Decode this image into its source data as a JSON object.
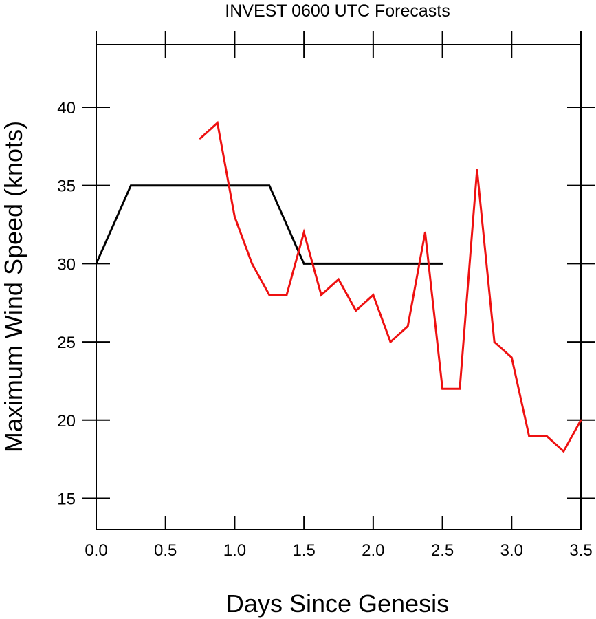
{
  "chart_data": {
    "type": "line",
    "title": "INVEST 0600 UTC Forecasts",
    "xlabel": "Days Since Genesis",
    "ylabel": "Maximum Wind Speed (knots)",
    "xlim": [
      0,
      3.5
    ],
    "ylim": [
      13,
      44
    ],
    "xticks": [
      {
        "value": 0,
        "label": "0.0"
      },
      {
        "value": 0.5,
        "label": "0.5"
      },
      {
        "value": 1,
        "label": "1.0"
      },
      {
        "value": 1.5,
        "label": "1.5"
      },
      {
        "value": 2,
        "label": "2.0"
      },
      {
        "value": 2.5,
        "label": "2.5"
      },
      {
        "value": 3,
        "label": "3.0"
      },
      {
        "value": 3.5,
        "label": "3.5"
      }
    ],
    "yticks": [
      {
        "value": 15,
        "label": "15"
      },
      {
        "value": 20,
        "label": "20"
      },
      {
        "value": 25,
        "label": "25"
      },
      {
        "value": 30,
        "label": "30"
      },
      {
        "value": 35,
        "label": "35"
      },
      {
        "value": 40,
        "label": "40"
      }
    ],
    "grid": false,
    "series": [
      {
        "color": "#000000",
        "x": [
          0,
          0.25,
          1.25,
          1.5,
          2.5
        ],
        "y": [
          30,
          35,
          35,
          30,
          30
        ]
      },
      {
        "color": "#ee1111",
        "x": [
          0.75,
          0.875,
          1.0,
          1.125,
          1.25,
          1.375,
          1.5,
          1.625,
          1.75,
          1.875,
          2.0,
          2.125,
          2.25,
          2.375,
          2.5,
          2.625,
          2.75,
          2.875,
          3.0,
          3.125,
          3.25,
          3.375,
          3.5
        ],
        "y": [
          38,
          39,
          33,
          30,
          28,
          28,
          32,
          28,
          29,
          27,
          28,
          25,
          26,
          32,
          22,
          22,
          36,
          25,
          24,
          19,
          19,
          18,
          20
        ]
      }
    ]
  }
}
